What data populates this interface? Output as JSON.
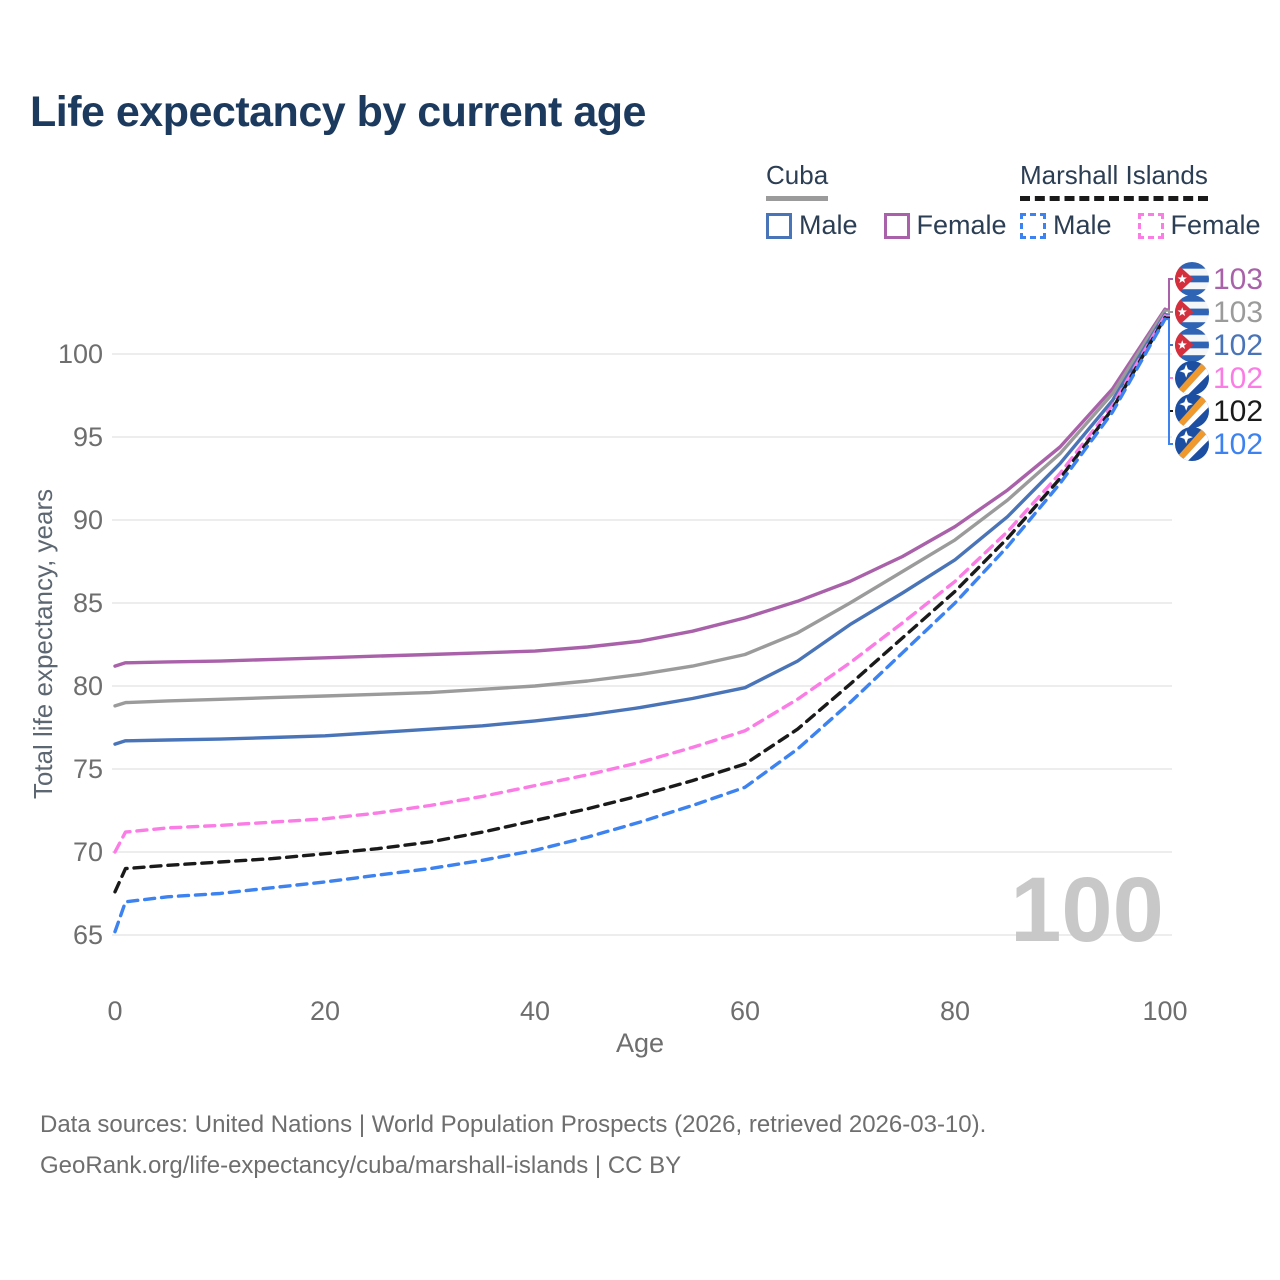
{
  "title": "Life expectancy by current age",
  "legend": {
    "groups": [
      {
        "name": "Cuba",
        "line_style": "solid",
        "line_color": "#9b9b9b",
        "items": [
          {
            "label": "Male",
            "color": "#4a74b8"
          },
          {
            "label": "Female",
            "color": "#a962a9"
          }
        ]
      },
      {
        "name": "Marshall Islands",
        "line_style": "dashed",
        "line_color": "#1a1a1a",
        "items": [
          {
            "label": "Male",
            "color": "#3c82f0"
          },
          {
            "label": "Female",
            "color": "#fb7ce5"
          }
        ]
      }
    ]
  },
  "chart_data": {
    "type": "line",
    "title": "Life expectancy by current age",
    "xlabel": "Age",
    "ylabel": "Total life expectancy, years",
    "xlim": [
      0,
      100
    ],
    "ylim": [
      64,
      103
    ],
    "x_ticks": [
      0,
      20,
      40,
      60,
      80,
      100
    ],
    "y_ticks": [
      65,
      70,
      75,
      80,
      85,
      90,
      95,
      100
    ],
    "grid": "horizontal",
    "legend_position": "top-right",
    "age_watermark": "100",
    "x": [
      0,
      1,
      5,
      10,
      15,
      20,
      25,
      30,
      35,
      40,
      45,
      50,
      55,
      60,
      65,
      70,
      75,
      80,
      85,
      90,
      95,
      100
    ],
    "series": [
      {
        "name": "Cuba Female",
        "country": "Cuba",
        "sex": "Female",
        "color": "#a962a9",
        "dashed": false,
        "end_label": "103",
        "flag": "cuba",
        "values": [
          81.2,
          81.4,
          81.45,
          81.5,
          81.6,
          81.7,
          81.8,
          81.9,
          82.0,
          82.1,
          82.35,
          82.7,
          83.3,
          84.1,
          85.1,
          86.3,
          87.8,
          89.6,
          91.8,
          94.4,
          97.9,
          102.7
        ]
      },
      {
        "name": "Cuba",
        "country": "Cuba",
        "sex": "Both",
        "color": "#9b9b9b",
        "dashed": false,
        "end_label": "103",
        "flag": "cuba",
        "values": [
          78.8,
          79.0,
          79.1,
          79.2,
          79.3,
          79.4,
          79.5,
          79.6,
          79.8,
          80.0,
          80.3,
          80.7,
          81.2,
          81.9,
          83.2,
          85.0,
          86.9,
          88.8,
          91.2,
          94.0,
          97.6,
          102.6
        ]
      },
      {
        "name": "Cuba Male",
        "country": "Cuba",
        "sex": "Male",
        "color": "#4a74b8",
        "dashed": false,
        "end_label": "102",
        "flag": "cuba",
        "values": [
          76.5,
          76.7,
          76.75,
          76.8,
          76.9,
          77.0,
          77.2,
          77.4,
          77.6,
          77.9,
          78.25,
          78.7,
          79.25,
          79.9,
          81.5,
          83.7,
          85.6,
          87.6,
          90.2,
          93.4,
          97.2,
          102.4
        ]
      },
      {
        "name": "Marshall Islands Female",
        "country": "Marshall Islands",
        "sex": "Female",
        "color": "#fb7ce5",
        "dashed": true,
        "end_label": "102",
        "flag": "marshall-islands",
        "values": [
          70.0,
          71.2,
          71.45,
          71.6,
          71.8,
          72.0,
          72.35,
          72.8,
          73.35,
          74.0,
          74.65,
          75.4,
          76.3,
          77.3,
          79.2,
          81.4,
          83.8,
          86.3,
          89.3,
          92.8,
          96.9,
          102.3
        ]
      },
      {
        "name": "Marshall Islands",
        "country": "Marshall Islands",
        "sex": "Both",
        "color": "#1a1a1a",
        "dashed": true,
        "end_label": "102",
        "flag": "marshall-islands",
        "values": [
          67.6,
          69.0,
          69.2,
          69.4,
          69.6,
          69.9,
          70.2,
          70.6,
          71.2,
          71.9,
          72.6,
          73.4,
          74.3,
          75.3,
          77.4,
          80.1,
          82.9,
          85.7,
          88.9,
          92.5,
          96.7,
          102.2
        ]
      },
      {
        "name": "Marshall Islands Male",
        "country": "Marshall Islands",
        "sex": "Male",
        "color": "#3c82f0",
        "dashed": true,
        "end_label": "102",
        "flag": "marshall-islands",
        "values": [
          65.2,
          67.0,
          67.3,
          67.5,
          67.85,
          68.2,
          68.6,
          69.0,
          69.5,
          70.1,
          70.9,
          71.8,
          72.8,
          73.9,
          76.2,
          79.0,
          82.0,
          85.0,
          88.4,
          92.2,
          96.5,
          102.1
        ]
      }
    ]
  },
  "footer": {
    "line1": "Data sources: United Nations | World Population Prospects (2026, retrieved 2026-03-10).",
    "line2": "GeoRank.org/life-expectancy/cuba/marshall-islands | CC BY"
  },
  "colors": {
    "title": "#1c3a5e",
    "axis_text": "#6e6e6e",
    "axis_title": "#5d6771",
    "grid": "#e7e7e7",
    "watermark": "#c8c8c8",
    "legend_text": "#2c3e54",
    "cuba_flag_blue": "#2f63b4",
    "cuba_flag_red": "#d32f3d",
    "marshall_flag_blue": "#1c4fa1",
    "marshall_flag_orange": "#f09a2e"
  }
}
